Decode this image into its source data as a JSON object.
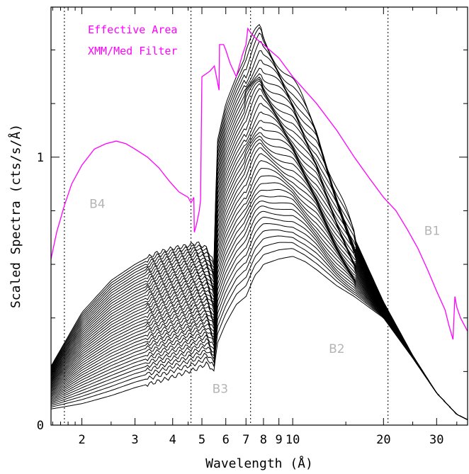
{
  "chart_data": {
    "type": "line",
    "xlabel": "Wavelength (Å)",
    "ylabel": "Scaled Spectra (cts/s/Å)",
    "x_scale": "log",
    "y_scale": "linear",
    "xlim": [
      1.58,
      38
    ],
    "ylim": [
      0,
      1.56
    ],
    "x_ticks": [
      2,
      3,
      4,
      5,
      6,
      7,
      8,
      9,
      10,
      20,
      30
    ],
    "x_tick_labels": [
      "2",
      "3",
      "4",
      "5",
      "6",
      "7",
      "8",
      "9",
      "10",
      "20",
      "30"
    ],
    "y_ticks": [
      0,
      1
    ],
    "y_tick_labels": [
      "0",
      "1"
    ],
    "grid": false,
    "legend_position": "top-left",
    "legend": [
      {
        "text": "Effective Area",
        "color": "#ff00ff"
      },
      {
        "text": "XMM/Med Filter",
        "color": "#ff00ff"
      }
    ],
    "band_boundaries": [
      1.75,
      4.6,
      7.25,
      20.7
    ],
    "band_labels": [
      {
        "text": "B4",
        "x": 2.25,
        "y": 0.81
      },
      {
        "text": "B3",
        "x": 5.75,
        "y": 0.12
      },
      {
        "text": "B2",
        "x": 14.0,
        "y": 0.27
      },
      {
        "text": "B1",
        "x": 29.0,
        "y": 0.71
      }
    ],
    "effective_area": {
      "color": "#ff00ff",
      "x": [
        1.58,
        1.65,
        1.75,
        1.85,
        2.0,
        2.2,
        2.4,
        2.6,
        2.8,
        3.0,
        3.3,
        3.6,
        3.9,
        4.2,
        4.5,
        4.6,
        4.7,
        4.72,
        4.8,
        4.9,
        4.95,
        5.0,
        5.3,
        5.5,
        5.7,
        5.72,
        5.9,
        6.0,
        6.2,
        6.5,
        6.8,
        7.0,
        7.1,
        7.3,
        7.6,
        8.0,
        9.0,
        10.0,
        12.0,
        14.0,
        16.0,
        18.0,
        20.0,
        22.0,
        24.0,
        26.0,
        28.0,
        30.0,
        32.0,
        33.0,
        34.0,
        34.5,
        35.0,
        36.0,
        38.0
      ],
      "y": [
        0.62,
        0.72,
        0.82,
        0.9,
        0.97,
        1.03,
        1.05,
        1.06,
        1.05,
        1.03,
        1.0,
        0.96,
        0.91,
        0.87,
        0.85,
        0.83,
        0.85,
        0.72,
        0.75,
        0.8,
        0.84,
        1.3,
        1.32,
        1.34,
        1.25,
        1.42,
        1.42,
        1.4,
        1.35,
        1.3,
        1.38,
        1.42,
        1.48,
        1.46,
        1.44,
        1.42,
        1.37,
        1.3,
        1.2,
        1.1,
        1.0,
        0.92,
        0.85,
        0.8,
        0.73,
        0.66,
        0.58,
        0.5,
        0.43,
        0.37,
        0.32,
        0.48,
        0.44,
        0.4,
        0.35
      ]
    },
    "scaled_spectra": {
      "color": "#000000",
      "count": 40,
      "x": [
        1.58,
        2.0,
        2.5,
        3.0,
        3.5,
        4.0,
        4.5,
        4.8,
        5.2,
        5.5,
        5.6,
        6.0,
        6.5,
        7.0,
        7.5,
        7.8,
        8.0,
        9.0,
        10.0,
        11.0,
        12.0,
        14.0,
        16.0,
        20.0,
        25.0,
        30.0,
        35.0,
        38.0
      ],
      "low_envelope": [
        0.06,
        0.08,
        0.11,
        0.14,
        0.16,
        0.18,
        0.2,
        0.21,
        0.23,
        0.2,
        0.3,
        0.38,
        0.45,
        0.48,
        0.56,
        0.58,
        0.6,
        0.62,
        0.63,
        0.61,
        0.58,
        0.52,
        0.48,
        0.4,
        0.25,
        0.12,
        0.04,
        0.02
      ],
      "high_envelope": [
        0.22,
        0.42,
        0.54,
        0.6,
        0.64,
        0.66,
        0.67,
        0.68,
        0.66,
        0.6,
        1.05,
        1.2,
        1.3,
        1.38,
        1.45,
        1.48,
        1.44,
        1.36,
        1.28,
        1.18,
        1.1,
        0.88,
        0.7,
        0.46,
        0.26,
        0.12,
        0.04,
        0.02
      ]
    }
  }
}
